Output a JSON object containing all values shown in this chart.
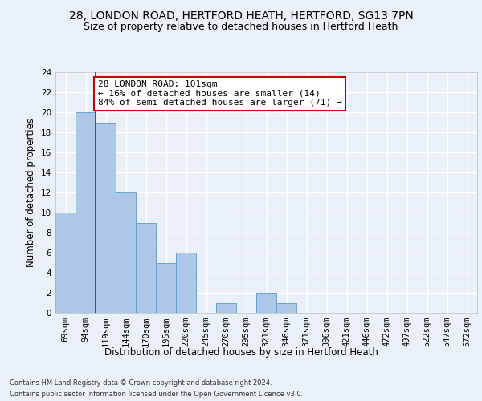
{
  "title1": "28, LONDON ROAD, HERTFORD HEATH, HERTFORD, SG13 7PN",
  "title2": "Size of property relative to detached houses in Hertford Heath",
  "xlabel": "Distribution of detached houses by size in Hertford Heath",
  "ylabel": "Number of detached properties",
  "categories": [
    "69sqm",
    "94sqm",
    "119sqm",
    "144sqm",
    "170sqm",
    "195sqm",
    "220sqm",
    "245sqm",
    "270sqm",
    "295sqm",
    "321sqm",
    "346sqm",
    "371sqm",
    "396sqm",
    "421sqm",
    "446sqm",
    "472sqm",
    "497sqm",
    "522sqm",
    "547sqm",
    "572sqm"
  ],
  "values": [
    10,
    20,
    19,
    12,
    9,
    5,
    6,
    0,
    1,
    0,
    2,
    1,
    0,
    0,
    0,
    0,
    0,
    0,
    0,
    0,
    0
  ],
  "bar_color": "#aec6e8",
  "bar_edge_color": "#5a9ac5",
  "vline_x": 1.5,
  "annotation_text": "28 LONDON ROAD: 101sqm\n← 16% of detached houses are smaller (14)\n84% of semi-detached houses are larger (71) →",
  "annotation_box_color": "#ffffff",
  "annotation_box_edge_color": "#cc0000",
  "vline_color": "#cc0000",
  "ylim": [
    0,
    24
  ],
  "yticks": [
    0,
    2,
    4,
    6,
    8,
    10,
    12,
    14,
    16,
    18,
    20,
    22,
    24
  ],
  "footer1": "Contains HM Land Registry data © Crown copyright and database right 2024.",
  "footer2": "Contains public sector information licensed under the Open Government Licence v3.0.",
  "bg_color": "#eaf0f8",
  "plot_bg_color": "#eaf0f8",
  "grid_color": "#ffffff",
  "title1_fontsize": 10,
  "title2_fontsize": 9,
  "axis_label_fontsize": 8.5,
  "tick_fontsize": 7.5,
  "annotation_fontsize": 8,
  "footer_fontsize": 6
}
